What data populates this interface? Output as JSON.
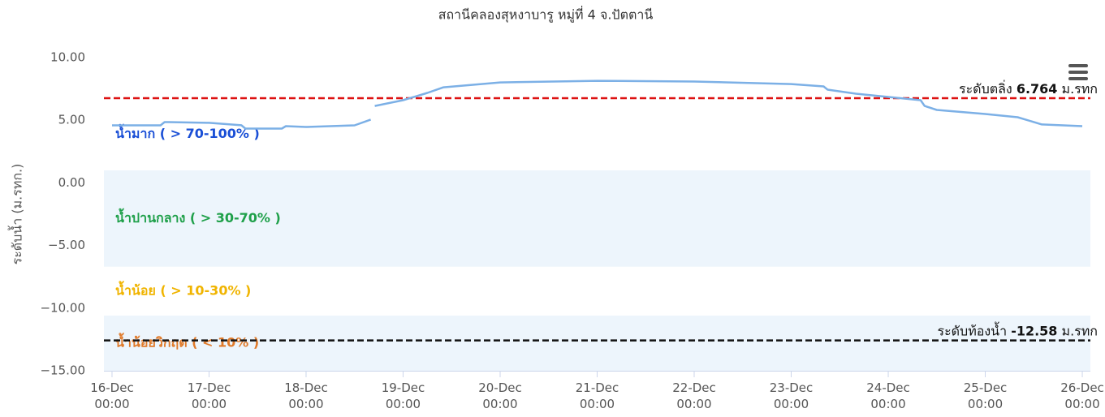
{
  "chart_data": {
    "type": "line",
    "title": "สถานีคลองสุหงาบารู หมู่ที่ 4 จ.ปัตตานี",
    "y_axis_label": "ระดับน้ำ (ม.รทก.)",
    "xlim": [
      "15-Dec 22:00",
      "26-Dec 02:00"
    ],
    "xticks": [
      "16-Dec 00:00",
      "17-Dec 00:00",
      "18-Dec 00:00",
      "19-Dec 00:00",
      "20-Dec 00:00",
      "21-Dec 00:00",
      "22-Dec 00:00",
      "23-Dec 00:00",
      "24-Dec 00:00",
      "25-Dec 00:00",
      "26-Dec 00:00"
    ],
    "ylim": [
      -15,
      10
    ],
    "yticks": [
      {
        "value": -15,
        "label": "−15.00"
      },
      {
        "value": -10,
        "label": "−10.00"
      },
      {
        "value": -5,
        "label": "−5.00"
      },
      {
        "value": 0,
        "label": "0.00"
      },
      {
        "value": 5,
        "label": "5.00"
      },
      {
        "value": 10,
        "label": "10.00"
      }
    ],
    "bands": [
      {
        "from": 6.764,
        "to": 1,
        "label": "น้ำมาก ( > 70-100% )",
        "label_color": "#1a4fd6",
        "fill": "#ffffff"
      },
      {
        "from": 1,
        "to": -6.7,
        "label": "น้ำปานกลาง ( > 30-70% )",
        "label_color": "#1fa04a",
        "fill": "#edf5fc"
      },
      {
        "from": -6.7,
        "to": -10.6,
        "label": "น้ำน้อย ( > 10-30% )",
        "label_color": "#f0b400",
        "fill": "#ffffff"
      },
      {
        "from": -10.6,
        "to": -15,
        "label": "น้ำน้อยวิกฤต ( < 10% )",
        "label_color": "#e07a2a",
        "fill": "#edf5fc"
      }
    ],
    "plot_lines": [
      {
        "value": 6.764,
        "text": "ระดับตลิ่ง",
        "unit": "ม.รทก",
        "color": "#dd1111"
      },
      {
        "value": -12.58,
        "text": "ระดับท้องน้ำ",
        "unit": "ม.รทก",
        "color": "#111111"
      }
    ],
    "series": [
      {
        "color": "#7cb0e6",
        "x": [
          "16-Dec 00:00",
          "16-Dec 12:00",
          "16-Dec 13:00",
          "16-Dec 14:00",
          "17-Dec 00:00",
          "17-Dec 08:00",
          "17-Dec 09:00",
          "17-Dec 18:00",
          "17-Dec 19:00",
          "18-Dec 00:00",
          "18-Dec 12:00",
          "18-Dec 16:00",
          "18-Dec 16:30",
          "18-Dec 17:00",
          "19-Dec 00:00",
          "19-Dec 06:00",
          "19-Dec 10:00",
          "20-Dec 00:00",
          "21-Dec 00:00",
          "22-Dec 00:00",
          "23-Dec 00:00",
          "23-Dec 08:00",
          "23-Dec 09:00",
          "23-Dec 16:00",
          "24-Dec 00:00",
          "24-Dec 08:00",
          "24-Dec 09:00",
          "24-Dec 12:00",
          "25-Dec 00:00",
          "25-Dec 08:00",
          "25-Dec 14:00",
          "26-Dec 00:00"
        ],
        "values": [
          4.59,
          4.59,
          4.85,
          4.85,
          4.79,
          4.6,
          4.33,
          4.33,
          4.53,
          4.46,
          4.59,
          5.05,
          null,
          6.14,
          6.6,
          7.18,
          7.63,
          8.02,
          8.15,
          8.09,
          7.89,
          7.7,
          7.44,
          7.12,
          6.86,
          6.6,
          6.14,
          5.82,
          5.5,
          5.24,
          4.66,
          4.53
        ]
      }
    ]
  }
}
